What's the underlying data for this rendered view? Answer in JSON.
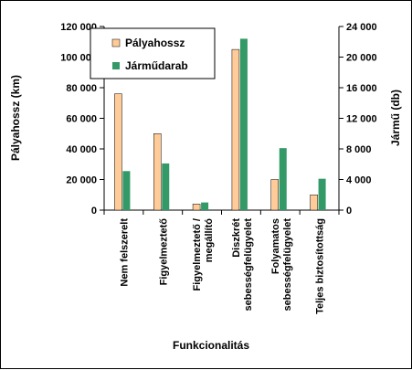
{
  "chart_data": {
    "type": "bar",
    "categories": [
      [
        "Nem felszerelt"
      ],
      [
        "Figyelmeztető"
      ],
      [
        "Figyelmeztető /",
        "megállító"
      ],
      [
        "Diszkrét",
        "sebességfelügyelet"
      ],
      [
        "Folyamatos",
        "sebességfelügyelet"
      ],
      [
        "Teljes biztosítottság"
      ]
    ],
    "series": [
      {
        "name": "Pályahossz",
        "axis": "left",
        "color": "#ffcc99",
        "values": [
          76000,
          50000,
          4000,
          105000,
          20000,
          10000
        ]
      },
      {
        "name": "Járműdarab",
        "axis": "right",
        "color": "#339966",
        "values": [
          5100,
          6100,
          1000,
          22400,
          8100,
          4100
        ]
      }
    ],
    "xlabel": "Funkcionalitás",
    "ylabel_left": "Pályahossz (km)",
    "ylabel_right": "Jármű (db)",
    "ylim_left": [
      0,
      120000
    ],
    "ylim_right": [
      0,
      24000
    ],
    "yticks_left": [
      "0",
      "20 000",
      "40 000",
      "60 000",
      "80 000",
      "100 000",
      "120 000"
    ],
    "yticks_right": [
      "0",
      "4 000",
      "8 000",
      "12 000",
      "16 000",
      "20 000",
      "24 000"
    ],
    "legend": "top-left",
    "grid": false
  }
}
